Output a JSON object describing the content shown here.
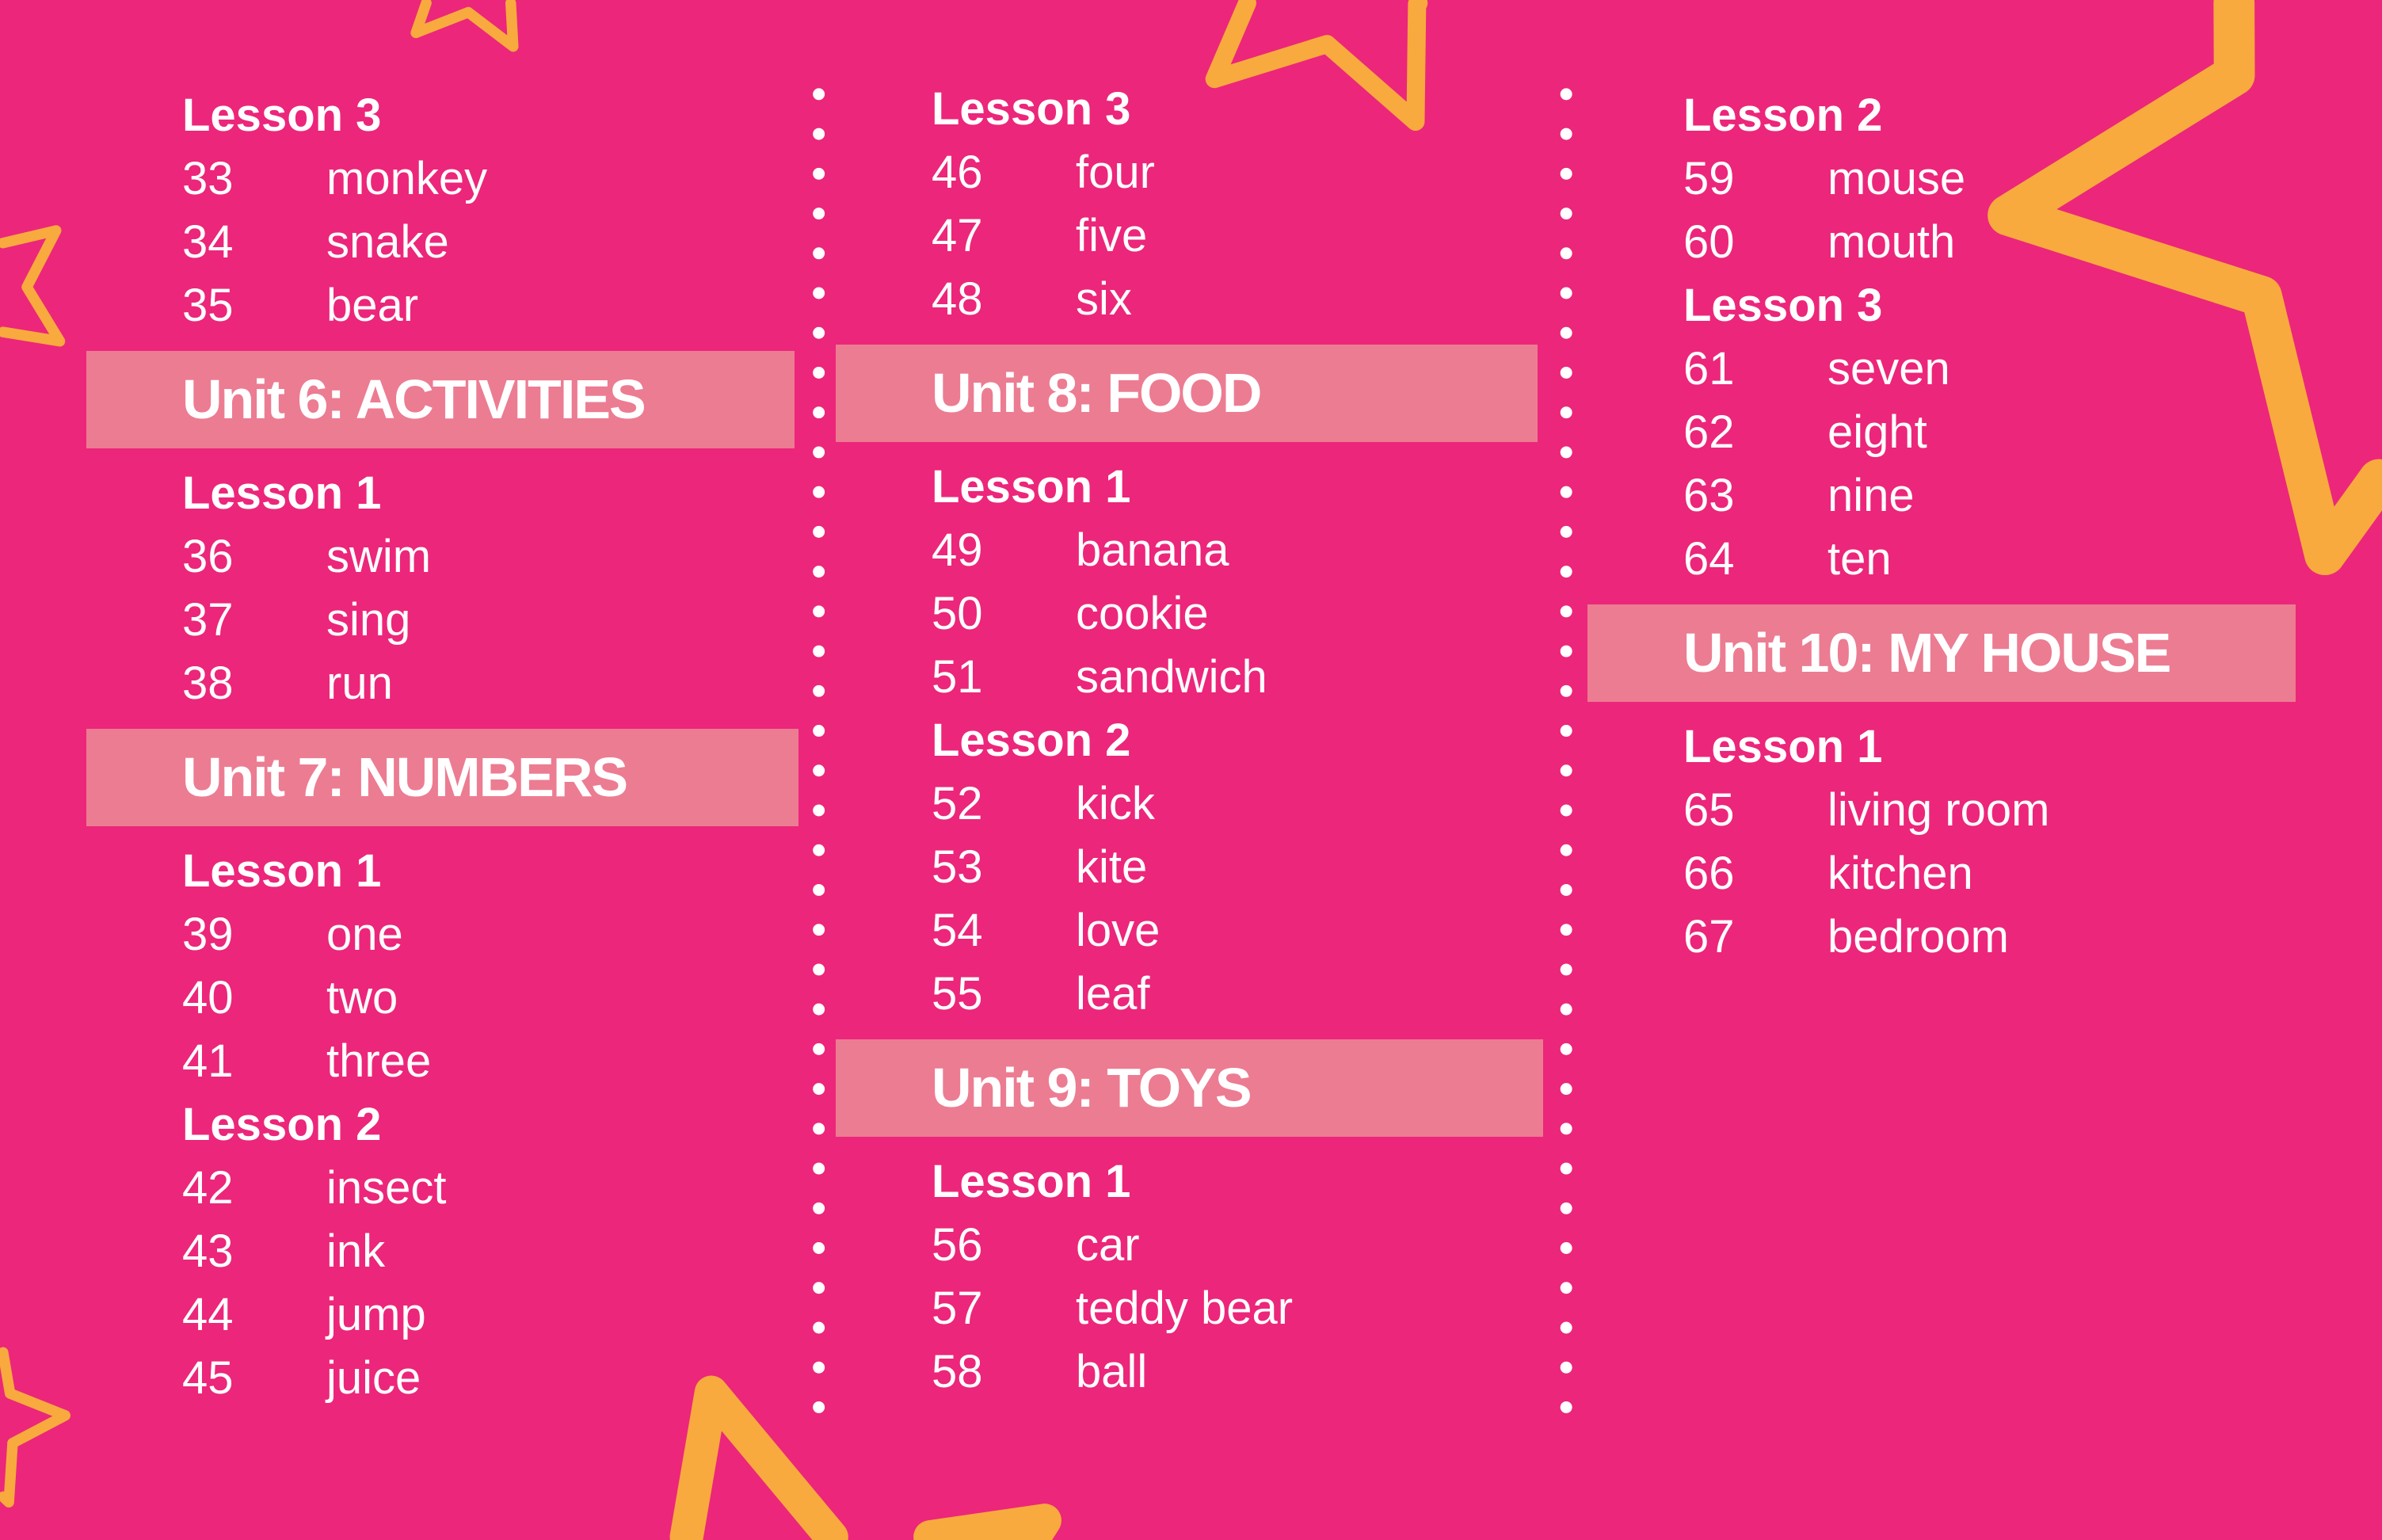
{
  "colors": {
    "background": "#EC267A",
    "unit_band": "#EC7C92",
    "star_outline": "#F8AA3E",
    "text": "#FFFFFF"
  },
  "columns": [
    {
      "entries": [
        {
          "type": "lesson",
          "label": "Lesson 3"
        },
        {
          "type": "word",
          "num": "33",
          "word": "monkey"
        },
        {
          "type": "word",
          "num": "34",
          "word": "snake"
        },
        {
          "type": "word",
          "num": "35",
          "word": "bear"
        },
        {
          "type": "unit",
          "label": "Unit 6: ACTIVITIES"
        },
        {
          "type": "lesson",
          "label": "Lesson 1"
        },
        {
          "type": "word",
          "num": "36",
          "word": "swim"
        },
        {
          "type": "word",
          "num": "37",
          "word": "sing"
        },
        {
          "type": "word",
          "num": "38",
          "word": "run"
        },
        {
          "type": "unit",
          "label": "Unit 7: NUMBERS"
        },
        {
          "type": "lesson",
          "label": "Lesson 1"
        },
        {
          "type": "word",
          "num": "39",
          "word": "one"
        },
        {
          "type": "word",
          "num": "40",
          "word": "two"
        },
        {
          "type": "word",
          "num": "41",
          "word": "three"
        },
        {
          "type": "lesson",
          "label": "Lesson 2"
        },
        {
          "type": "word",
          "num": "42",
          "word": "insect"
        },
        {
          "type": "word",
          "num": "43",
          "word": "ink"
        },
        {
          "type": "word",
          "num": "44",
          "word": "jump"
        },
        {
          "type": "word",
          "num": "45",
          "word": "juice"
        }
      ]
    },
    {
      "entries": [
        {
          "type": "lesson",
          "label": "Lesson 3"
        },
        {
          "type": "word",
          "num": "46",
          "word": "four"
        },
        {
          "type": "word",
          "num": "47",
          "word": "five"
        },
        {
          "type": "word",
          "num": "48",
          "word": "six"
        },
        {
          "type": "unit",
          "label": "Unit 8: FOOD"
        },
        {
          "type": "lesson",
          "label": "Lesson 1"
        },
        {
          "type": "word",
          "num": "49",
          "word": "banana"
        },
        {
          "type": "word",
          "num": "50",
          "word": "cookie"
        },
        {
          "type": "word",
          "num": "51",
          "word": "sandwich"
        },
        {
          "type": "lesson",
          "label": "Lesson 2"
        },
        {
          "type": "word",
          "num": "52",
          "word": "kick"
        },
        {
          "type": "word",
          "num": "53",
          "word": "kite"
        },
        {
          "type": "word",
          "num": "54",
          "word": "love"
        },
        {
          "type": "word",
          "num": "55",
          "word": "leaf"
        },
        {
          "type": "unit",
          "label": "Unit 9: TOYS"
        },
        {
          "type": "lesson",
          "label": "Lesson 1"
        },
        {
          "type": "word",
          "num": "56",
          "word": "car"
        },
        {
          "type": "word",
          "num": "57",
          "word": "teddy bear"
        },
        {
          "type": "word",
          "num": "58",
          "word": "ball"
        }
      ]
    },
    {
      "entries": [
        {
          "type": "lesson",
          "label": "Lesson 2"
        },
        {
          "type": "word",
          "num": "59",
          "word": "mouse"
        },
        {
          "type": "word",
          "num": "60",
          "word": "mouth"
        },
        {
          "type": "lesson",
          "label": "Lesson 3"
        },
        {
          "type": "word",
          "num": "61",
          "word": "seven"
        },
        {
          "type": "word",
          "num": "62",
          "word": "eight"
        },
        {
          "type": "word",
          "num": "63",
          "word": "nine"
        },
        {
          "type": "word",
          "num": "64",
          "word": "ten"
        },
        {
          "type": "unit",
          "label": "Unit 10: MY HOUSE"
        },
        {
          "type": "lesson",
          "label": "Lesson 1"
        },
        {
          "type": "word",
          "num": "65",
          "word": "living room"
        },
        {
          "type": "word",
          "num": "66",
          "word": "kitchen"
        },
        {
          "type": "word",
          "num": "67",
          "word": "bedroom"
        }
      ]
    }
  ]
}
